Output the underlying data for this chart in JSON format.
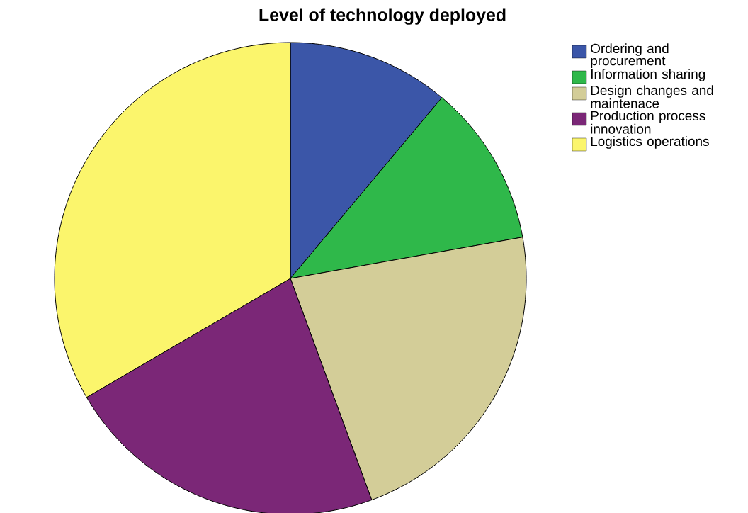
{
  "chart_data": {
    "type": "pie",
    "title": "Level of technology deployed",
    "categories": [
      "Ordering and procurement",
      "Information sharing",
      "Design changes and maintenace",
      "Production process innovation",
      "Logistics operations"
    ],
    "values": [
      11.1,
      11.1,
      22.2,
      22.2,
      33.4
    ],
    "colors": [
      "#3b56a8",
      "#2fb84a",
      "#d3cd98",
      "#7b2777",
      "#fbf56c"
    ],
    "legend": "top right"
  }
}
